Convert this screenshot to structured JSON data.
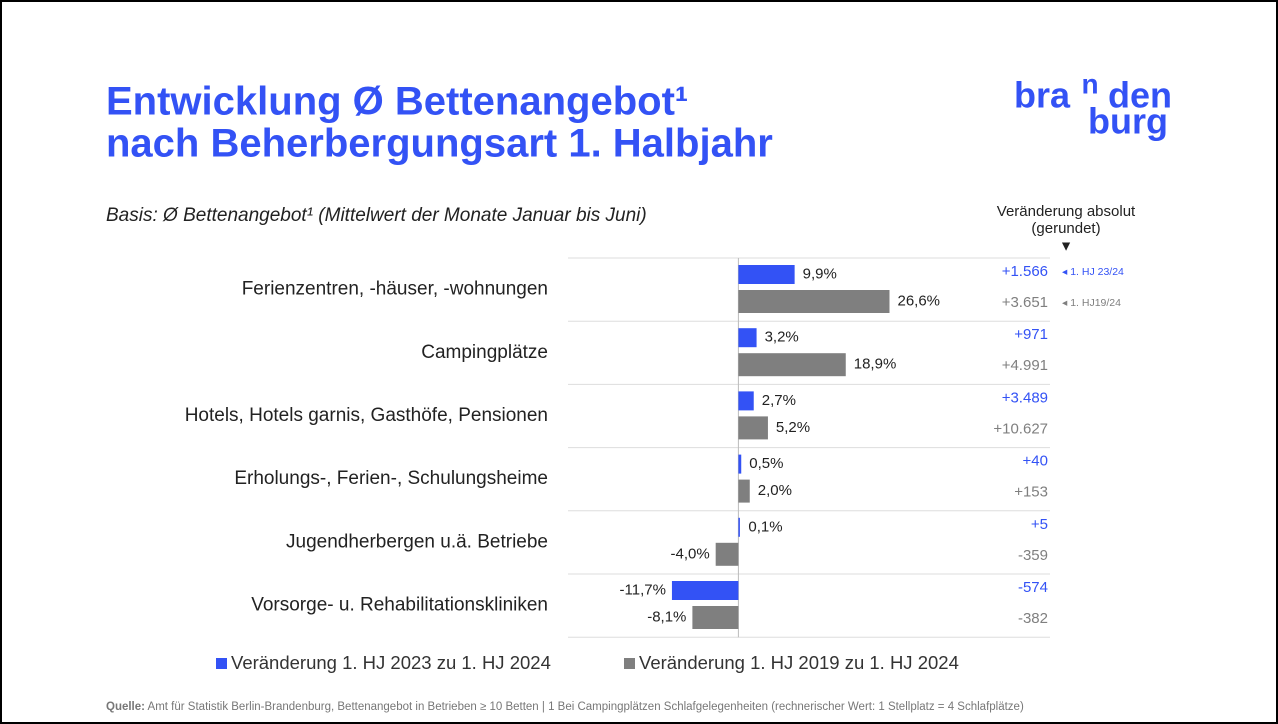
{
  "chart_data": {
    "type": "bar",
    "orientation": "horizontal",
    "title_lines": [
      "Entwicklung Ø Bettenangebot¹",
      "nach Beherbergungsart 1. Halbjahr"
    ],
    "logo": [
      "bra",
      "n",
      "den",
      "burg"
    ],
    "subtitle": "Basis: Ø Bettenangebot¹ (Mittelwert der Monate Januar bis Juni)",
    "absolute_header": [
      "Veränderung absolut",
      "(gerundet)",
      "▼"
    ],
    "categories": [
      "Ferienzentren, -häuser, -wohnungen",
      "Campingplätze",
      "Hotels, Hotels garnis, Gasthöfe, Pensionen",
      "Erholungs-, Ferien-, Schulungsheime",
      "Jugendherbergen u.ä. Betriebe",
      "Vorsorge- u. Rehabilitationskliniken"
    ],
    "series": [
      {
        "name": "Veränderung 1. HJ 2023 zu 1. HJ 2024",
        "color": "#3352f5",
        "values": [
          9.9,
          3.2,
          2.7,
          0.5,
          0.1,
          -11.7
        ],
        "value_labels": [
          "9,9%",
          "3,2%",
          "2,7%",
          "0,5%",
          "0,1%",
          "-11,7%"
        ],
        "absolute_values": [
          1566,
          971,
          3489,
          40,
          5,
          -574
        ],
        "absolute_labels": [
          "+1.566",
          "+971",
          "+3.489",
          "+40",
          "+5",
          "-574"
        ],
        "annotation": "◂ 1. HJ 23/24"
      },
      {
        "name": "Veränderung 1. HJ 2019 zu 1. HJ 2024",
        "color": "#7f7f7f",
        "values": [
          26.6,
          18.9,
          5.2,
          2.0,
          -4.0,
          -8.1
        ],
        "value_labels": [
          "26,6%",
          "18,9%",
          "5,2%",
          "2,0%",
          "-4,0%",
          "-8,1%"
        ],
        "absolute_values": [
          3651,
          4991,
          10627,
          153,
          -359,
          -382
        ],
        "absolute_labels": [
          "+3.651",
          "+4.991",
          "+10.627",
          "+153",
          "-359",
          "-382"
        ],
        "annotation": "◂ 1. HJ19/24"
      }
    ],
    "xlim": [
      -30,
      45
    ],
    "source_label": "Quelle:",
    "source": "Amt für Statistik Berlin-Brandenburg, Bettenangebot in Betrieben ≥ 10 Betten | 1 Bei Campingplätzen Schlafgelegenheiten (rechnerischer Wert: 1 Stellplatz = 4 Schlafplätze)"
  }
}
